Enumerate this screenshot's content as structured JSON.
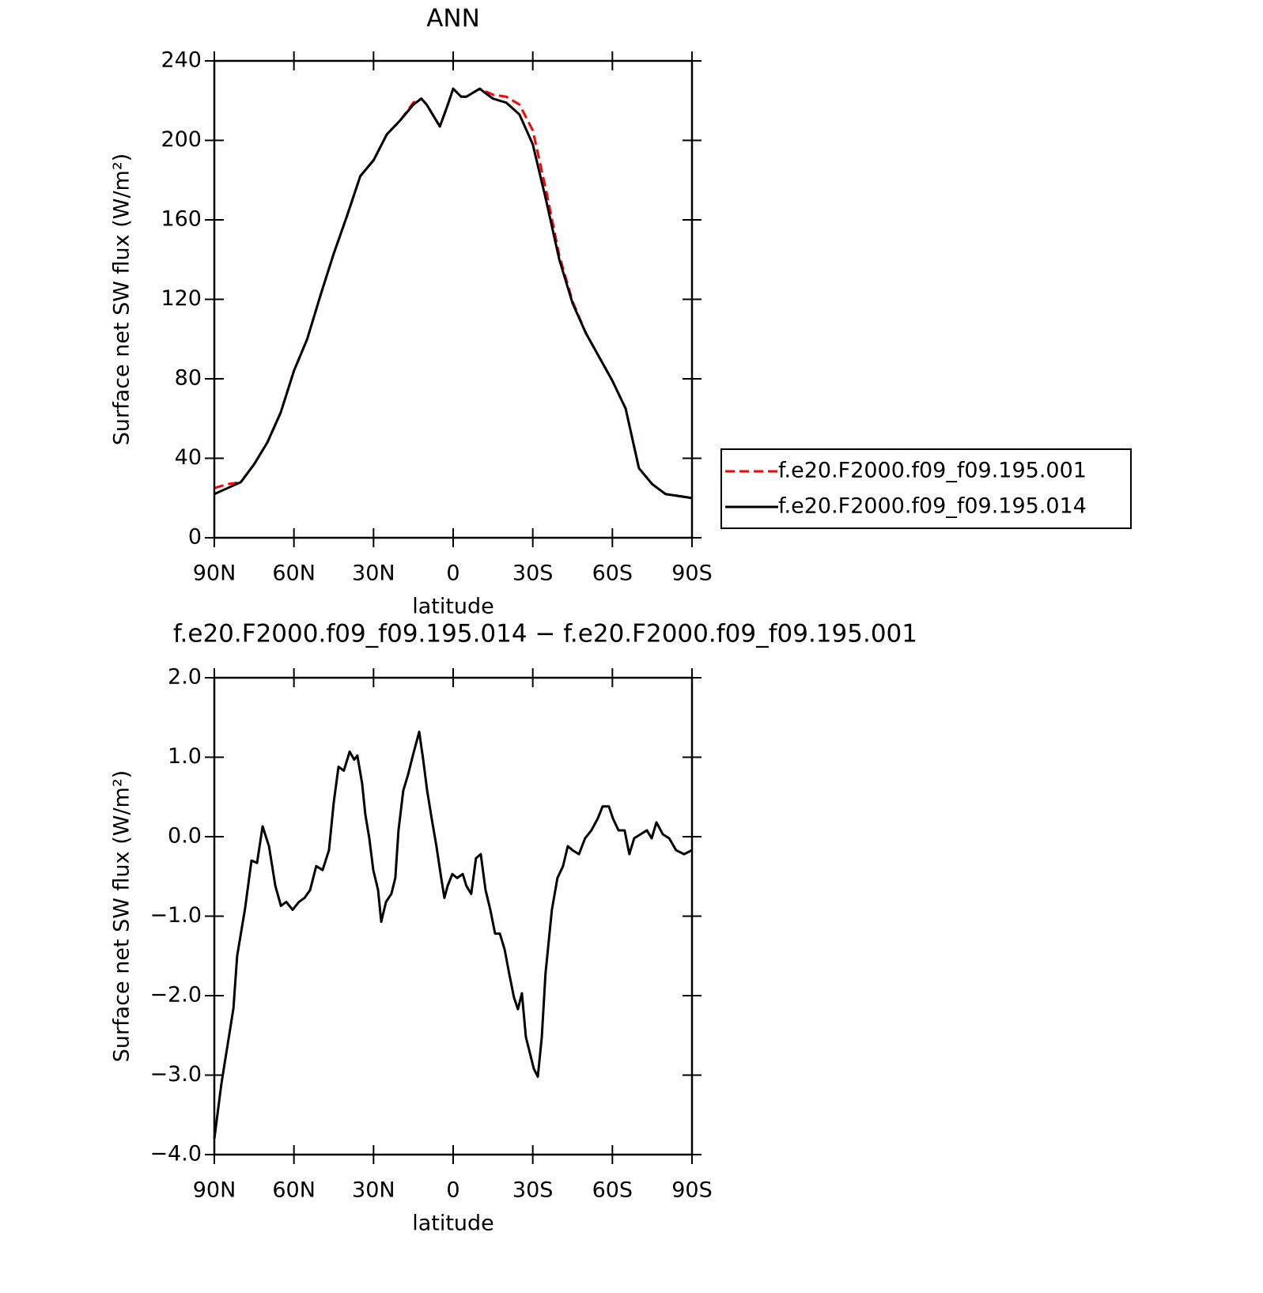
{
  "chart_data": [
    {
      "type": "line",
      "title": "ANN",
      "xlabel": "latitude",
      "ylabel": "Surface net SW flux (W/m²)",
      "x": [
        90,
        85,
        80,
        75,
        70,
        65,
        60,
        55,
        50,
        45,
        40,
        35,
        30,
        25,
        20,
        15,
        12,
        10,
        5,
        2,
        0,
        -3,
        -5,
        -10,
        -15,
        -20,
        -25,
        -30,
        -35,
        -40,
        -45,
        -50,
        -55,
        -60,
        -65,
        -70,
        -75,
        -80,
        -85,
        -90
      ],
      "series": [
        {
          "name": "f.e20.F2000.f09_f09.195.001",
          "color": "#ff0000",
          "linestyle": "dashed",
          "values": [
            25,
            27,
            28,
            37,
            48,
            63,
            84,
            100,
            122,
            143,
            162,
            182,
            190,
            203,
            210,
            219,
            221,
            218,
            207,
            218,
            226,
            222,
            222,
            226,
            223,
            222,
            218,
            205,
            175,
            142,
            119,
            103,
            91,
            79,
            65,
            35,
            27,
            22,
            21,
            20
          ]
        },
        {
          "name": "f.e20.F2000.f09_f09.195.014",
          "color": "#000000",
          "linestyle": "solid",
          "values": [
            22,
            25,
            28,
            37,
            48,
            63,
            84,
            100,
            122,
            143,
            162,
            182,
            190,
            203,
            210,
            218,
            221,
            218,
            207,
            218,
            226,
            222,
            222,
            226,
            221,
            219,
            213,
            198,
            170,
            140,
            118,
            103,
            91,
            79,
            65,
            35,
            27,
            22,
            21,
            20
          ]
        }
      ],
      "xlim": [
        90,
        -90
      ],
      "xticks": [
        {
          "value": 90,
          "label": "90N"
        },
        {
          "value": 60,
          "label": "60N"
        },
        {
          "value": 30,
          "label": "30N"
        },
        0,
        {
          "value": -30,
          "label": "30S"
        },
        {
          "value": -60,
          "label": "60S"
        },
        {
          "value": -90,
          "label": "90S"
        }
      ],
      "ylim": [
        0,
        240
      ],
      "yticks": [
        0,
        40,
        80,
        120,
        160,
        200,
        240
      ],
      "legend": "right"
    },
    {
      "type": "line",
      "title": "f.e20.F2000.f09_f09.195.014 − f.e20.F2000.f09_f09.195.001",
      "xlabel": "latitude",
      "ylabel": "Surface net SW flux (W/m²)",
      "x": [
        90,
        87.3,
        84.9,
        82.8,
        81.4,
        78.4,
        76,
        73.9,
        71.8,
        69.4,
        67,
        64.9,
        62.9,
        60.5,
        58.1,
        56,
        53.9,
        51.6,
        49.2,
        46.8,
        45,
        43.2,
        41.2,
        39,
        37.3,
        36.1,
        34.3,
        33.1,
        31.6,
        30.1,
        28.3,
        27.1,
        25.3,
        23.3,
        21.8,
        20.6,
        18.8,
        17,
        15.2,
        12.8,
        11.3,
        9.8,
        8.1,
        6.3,
        4.5,
        3.3,
        2.1,
        0.3,
        -1.5,
        -3.6,
        -5,
        -6.8,
        -8.6,
        -10.4,
        -12.2,
        -14,
        -15.8,
        -17.6,
        -19.4,
        -21.1,
        -22.9,
        -24.4,
        -25.9,
        -27.4,
        -28.9,
        -30.4,
        -31.9,
        -33.4,
        -34.8,
        -37.2,
        -39.3,
        -41.4,
        -43.2,
        -45,
        -47.4,
        -49.7,
        -52.1,
        -54.5,
        -56.3,
        -58.7,
        -60.2,
        -62.3,
        -64.6,
        -66.4,
        -68.2,
        -70.6,
        -73,
        -74.8,
        -76.6,
        -79,
        -81.4,
        -84,
        -87,
        -90
      ],
      "series": [
        {
          "name": "f.e20.F2000.f09_f09.195.014 − f.e20.F2000.f09_f09.195.001",
          "color": "#000000",
          "linestyle": "solid",
          "values": [
            -3.8,
            -3.1,
            -2.6,
            -2.16,
            -1.5,
            -0.9,
            -0.3,
            -0.33,
            0.13,
            -0.12,
            -0.62,
            -0.87,
            -0.82,
            -0.92,
            -0.82,
            -0.77,
            -0.67,
            -0.37,
            -0.42,
            -0.17,
            0.43,
            0.88,
            0.83,
            1.07,
            0.97,
            1.02,
            0.67,
            0.28,
            -0.02,
            -0.42,
            -0.67,
            -1.07,
            -0.82,
            -0.72,
            -0.52,
            0.08,
            0.58,
            0.78,
            1.02,
            1.32,
            0.97,
            0.58,
            0.23,
            -0.12,
            -0.52,
            -0.77,
            -0.62,
            -0.47,
            -0.52,
            -0.47,
            -0.62,
            -0.72,
            -0.27,
            -0.22,
            -0.67,
            -0.92,
            -1.22,
            -1.22,
            -1.42,
            -1.72,
            -2.02,
            -2.17,
            -1.97,
            -2.52,
            -2.72,
            -2.92,
            -3.02,
            -2.52,
            -1.72,
            -0.92,
            -0.52,
            -0.37,
            -0.12,
            -0.17,
            -0.22,
            -0.02,
            0.08,
            0.23,
            0.38,
            0.38,
            0.23,
            0.08,
            0.08,
            -0.22,
            -0.02,
            0.03,
            0.08,
            -0.02,
            0.18,
            0.03,
            -0.02,
            -0.17,
            -0.22,
            -0.17
          ]
        }
      ],
      "xlim": [
        90,
        -90
      ],
      "xticks": [
        {
          "value": 90,
          "label": "90N"
        },
        {
          "value": 60,
          "label": "60N"
        },
        {
          "value": 30,
          "label": "30N"
        },
        0,
        {
          "value": -30,
          "label": "30S"
        },
        {
          "value": -60,
          "label": "60S"
        },
        {
          "value": -90,
          "label": "90S"
        }
      ],
      "ylim": [
        -4,
        2
      ],
      "yticks": [
        {
          "value": -4,
          "label": "−4.0"
        },
        {
          "value": -3,
          "label": "−3.0"
        },
        {
          "value": -2,
          "label": "−2.0"
        },
        {
          "value": -1,
          "label": "−1.0"
        },
        {
          "value": 0,
          "label": "0.0"
        },
        {
          "value": 1,
          "label": "1.0"
        },
        {
          "value": 2,
          "label": "2.0"
        }
      ]
    }
  ]
}
